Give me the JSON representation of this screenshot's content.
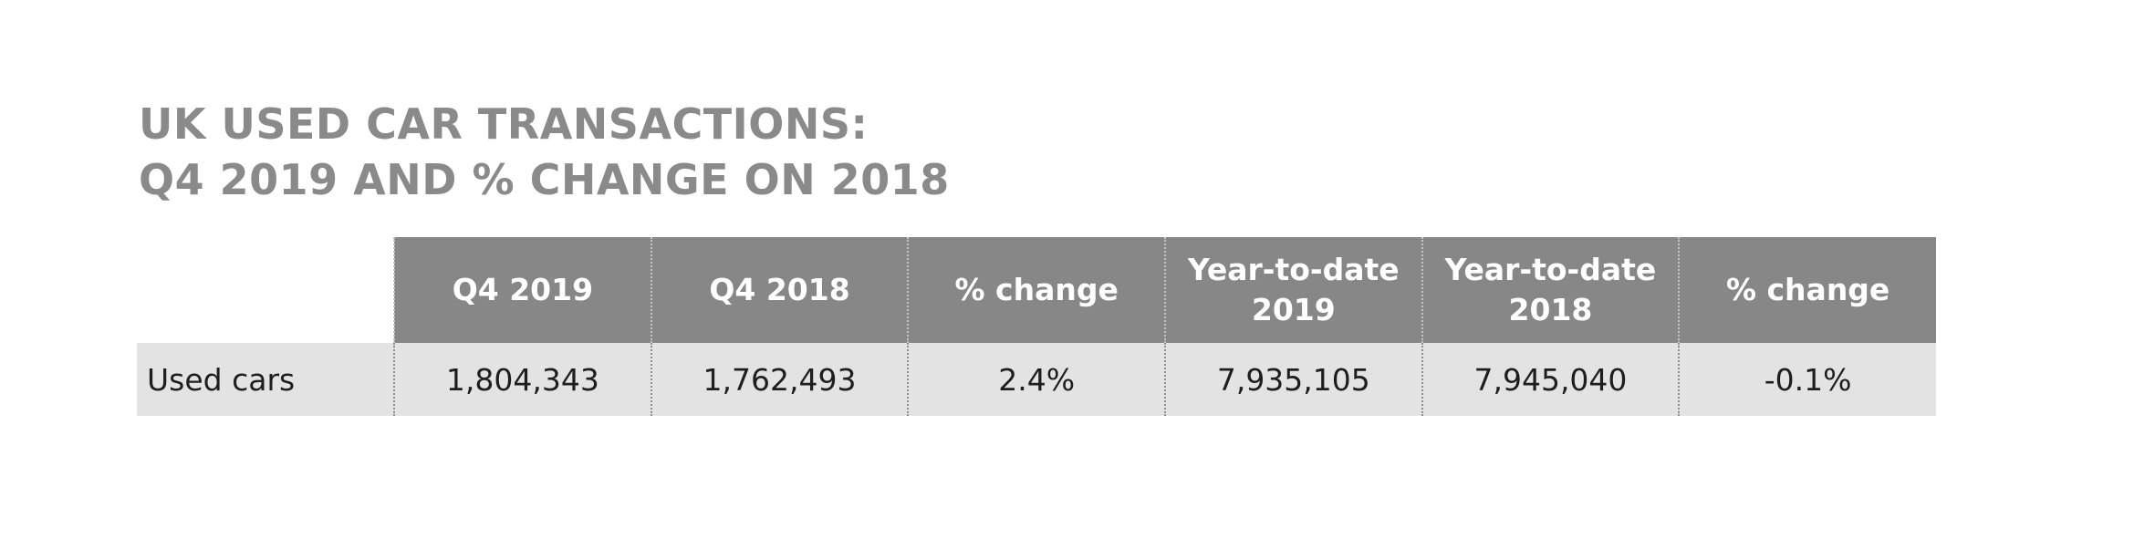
{
  "title": {
    "line1": "UK USED CAR TRANSACTIONS:",
    "line2": "Q4 2019 AND % CHANGE ON 2018"
  },
  "table": {
    "columns": [
      "Q4 2019",
      "Q4 2018",
      "% change",
      "Year-to-date 2019",
      "Year-to-date 2018",
      "% change"
    ],
    "rows": [
      {
        "label": "Used cars",
        "values": [
          "1,804,343",
          "1,762,493",
          "2.4%",
          "7,935,105",
          "7,945,040",
          "-0.1%"
        ]
      }
    ]
  },
  "colors": {
    "title": "#8a8a8a",
    "header_bg": "#878787",
    "header_text": "#ffffff",
    "row_bg": "#e3e3e3",
    "row_text": "#1e1e1e"
  }
}
